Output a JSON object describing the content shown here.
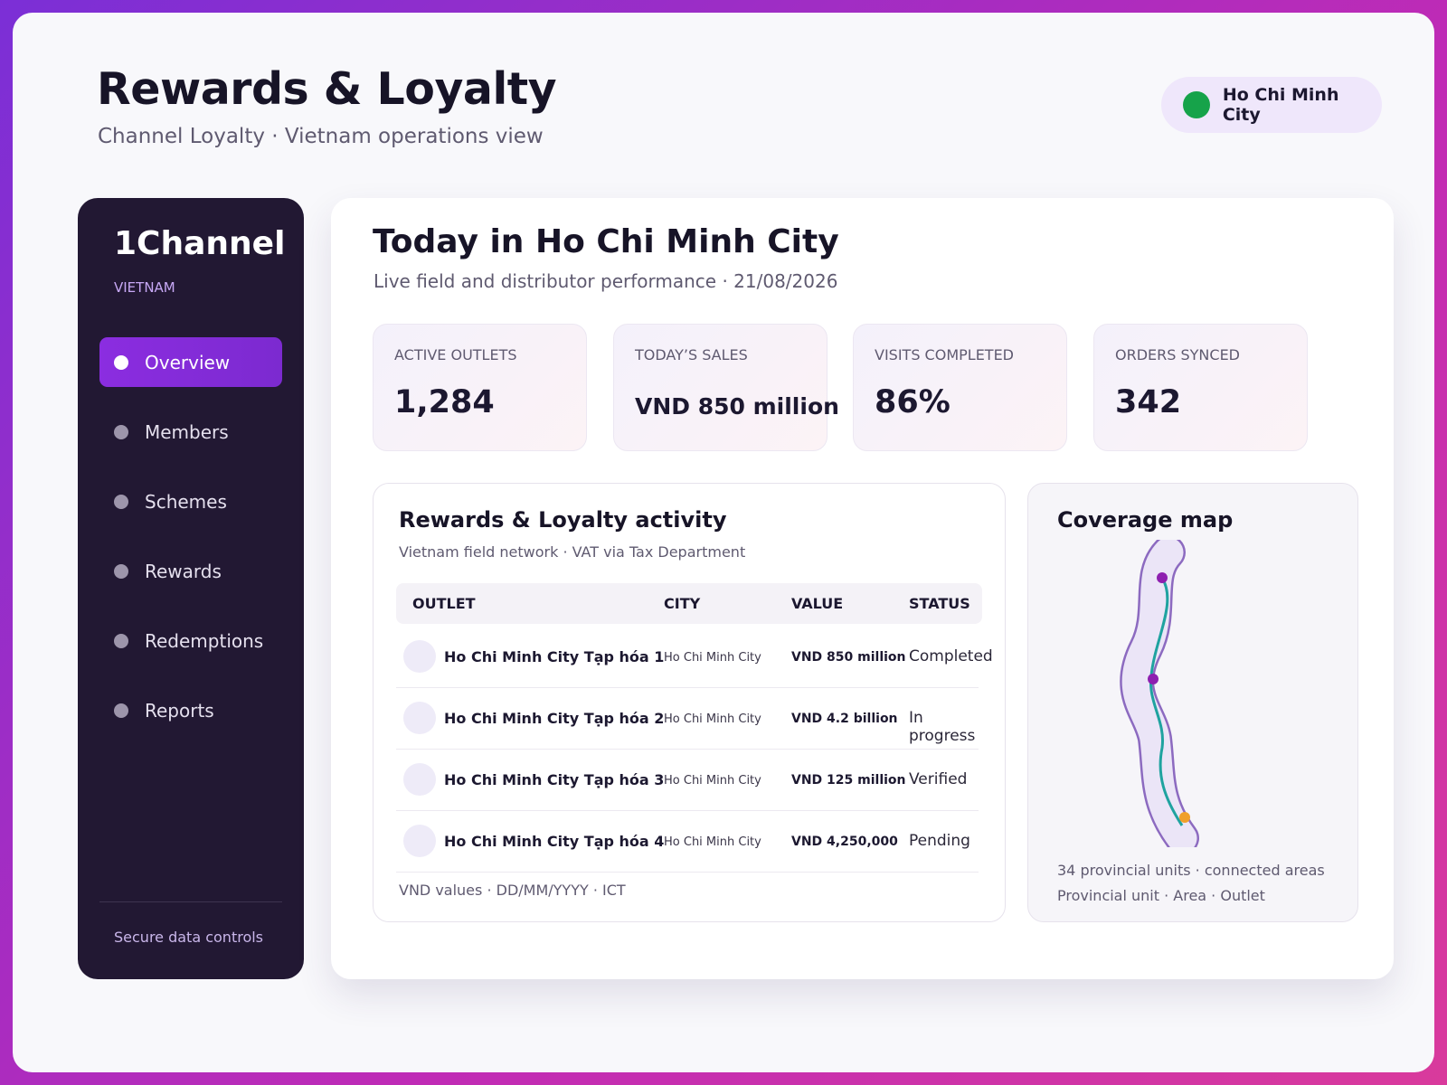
{
  "header": {
    "title": "Rewards & Loyalty",
    "subtitle": "Channel Loyalty · Vietnam operations view",
    "location": "Ho Chi Minh City"
  },
  "sidebar": {
    "brand": "1Channel",
    "region": "VIETNAM",
    "nav": [
      "Overview",
      "Members",
      "Schemes",
      "Rewards",
      "Redemptions",
      "Reports"
    ],
    "footer": "Secure data controls"
  },
  "main": {
    "title": "Today in Ho Chi Minh City",
    "subtitle": "Live field and distributor performance · 21/08/2026",
    "kpis": [
      {
        "label": "ACTIVE OUTLETS",
        "value": "1,284"
      },
      {
        "label": "TODAY’S SALES",
        "value": "VND 850 million"
      },
      {
        "label": "VISITS COMPLETED",
        "value": "86%"
      },
      {
        "label": "ORDERS SYNCED",
        "value": "342"
      }
    ]
  },
  "activity": {
    "title": "Rewards & Loyalty activity",
    "subtitle": "Vietnam field network · VAT via Tax Department",
    "table": {
      "headers": [
        "OUTLET",
        "CITY",
        "VALUE",
        "STATUS"
      ],
      "rows": [
        [
          "Ho Chi Minh City Tạp hóa 1",
          "Ho Chi Minh City",
          "VND 850 million",
          "Completed"
        ],
        [
          "Ho Chi Minh City Tạp hóa 2",
          "Ho Chi Minh City",
          "VND 4.2 billion",
          "In progress"
        ],
        [
          "Ho Chi Minh City Tạp hóa 3",
          "Ho Chi Minh City",
          "VND 125 million",
          "Verified"
        ],
        [
          "Ho Chi Minh City Tạp hóa 4",
          "Ho Chi Minh City",
          "VND 4,250,000",
          "Pending"
        ]
      ]
    },
    "footnote": "VND values · DD/MM/YYYY · ICT"
  },
  "map": {
    "title": "Coverage map",
    "captions": [
      "34 provincial units · connected areas",
      "Provincial unit · Area · Outlet"
    ]
  }
}
